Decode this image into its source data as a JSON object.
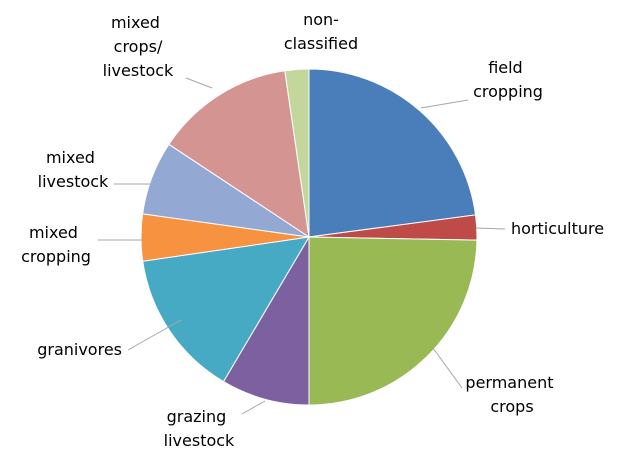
{
  "chart_data": {
    "type": "pie",
    "categories": [
      "field cropping",
      "horticulture",
      "permanent crops",
      "grazing livestock",
      "granivores",
      "mixed cropping",
      "mixed livestock",
      "mixed crops/livestock",
      "non-classified"
    ],
    "values": [
      22.9,
      2.4,
      24.7,
      8.5,
      14.2,
      4.5,
      7.1,
      13.4,
      2.3
    ],
    "colors": [
      "#4a7ebb",
      "#be4b48",
      "#98b954",
      "#7d60a0",
      "#46aac5",
      "#f69240",
      "#93a9d4",
      "#d49592",
      "#c3d69b"
    ]
  }
}
